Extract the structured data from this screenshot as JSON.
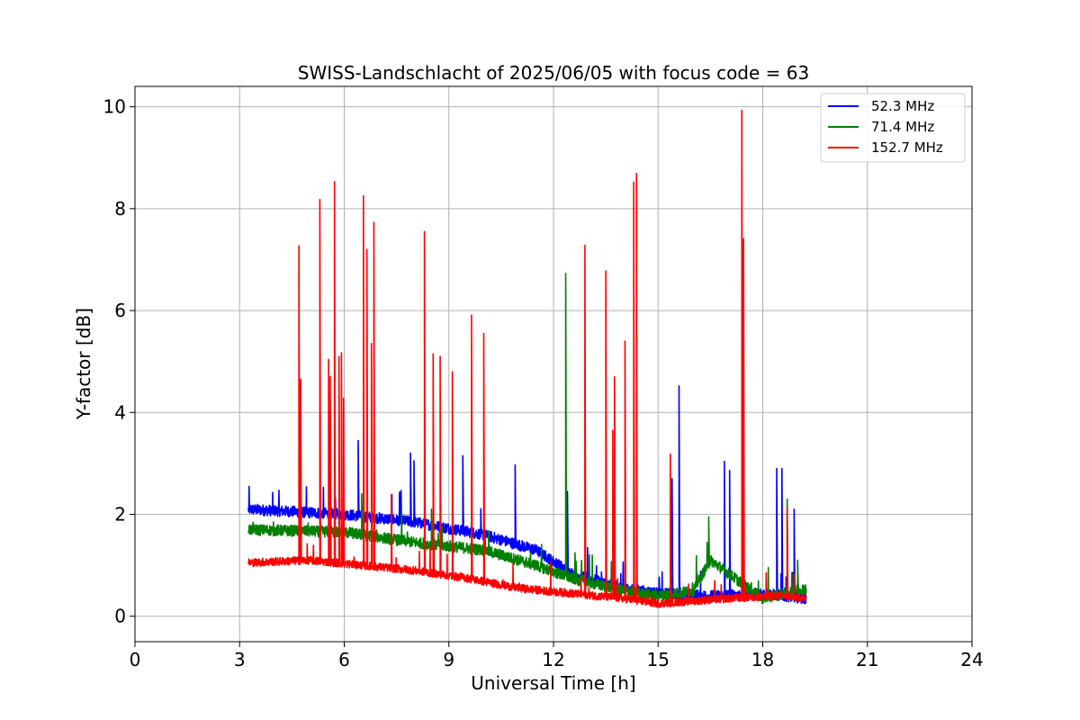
{
  "chart_data": {
    "type": "line",
    "title": "SWISS-Landschlacht of 2025/06/05 with focus code = 63",
    "xlabel": "Universal Time [h]",
    "ylabel": "Y-factor [dB]",
    "xlim": [
      0,
      24
    ],
    "ylim": [
      -0.5,
      10.4
    ],
    "xticks": [
      "0",
      "3",
      "6",
      "9",
      "12",
      "15",
      "18",
      "21",
      "24"
    ],
    "yticks": [
      "0",
      "2",
      "4",
      "6",
      "8",
      "10"
    ],
    "grid": true,
    "legend_position": "top-right",
    "series": [
      {
        "name": " 52.3 MHz",
        "color": "#0000ff",
        "baseline": [
          [
            3.25,
            2.1
          ],
          [
            6.0,
            2.0
          ],
          [
            8.0,
            1.85
          ],
          [
            10.0,
            1.6
          ],
          [
            11.5,
            1.3
          ],
          [
            12.5,
            0.85
          ],
          [
            14.0,
            0.55
          ],
          [
            15.0,
            0.45
          ],
          [
            16.5,
            0.4
          ],
          [
            18.0,
            0.45
          ],
          [
            19.25,
            0.35
          ]
        ],
        "spikes": [
          [
            6.4,
            3.45
          ],
          [
            7.9,
            3.2
          ],
          [
            8.0,
            3.05
          ],
          [
            9.4,
            3.15
          ],
          [
            10.9,
            2.97
          ],
          [
            12.4,
            2.45
          ],
          [
            15.4,
            2.7
          ],
          [
            15.6,
            4.52
          ],
          [
            16.9,
            3.04
          ],
          [
            17.05,
            2.86
          ],
          [
            18.4,
            2.9
          ],
          [
            18.55,
            2.9
          ],
          [
            18.9,
            2.1
          ]
        ]
      },
      {
        "name": " 71.4 MHz",
        "color": "#008000",
        "baseline": [
          [
            3.25,
            1.7
          ],
          [
            6.0,
            1.65
          ],
          [
            8.0,
            1.45
          ],
          [
            10.0,
            1.3
          ],
          [
            11.5,
            1.0
          ],
          [
            12.5,
            0.75
          ],
          [
            14.0,
            0.5
          ],
          [
            15.0,
            0.4
          ],
          [
            16.0,
            0.5
          ],
          [
            16.5,
            1.1
          ],
          [
            17.3,
            0.7
          ],
          [
            18.0,
            0.35
          ],
          [
            19.25,
            0.55
          ]
        ],
        "spikes": [
          [
            5.6,
            2.6
          ],
          [
            6.5,
            2.4
          ],
          [
            8.5,
            2.1
          ],
          [
            12.35,
            6.73
          ],
          [
            16.45,
            1.95
          ],
          [
            18.7,
            2.3
          ],
          [
            19.0,
            1.1
          ]
        ]
      },
      {
        "name": "152.7 MHz",
        "color": "#ff0000",
        "baseline": [
          [
            3.25,
            1.05
          ],
          [
            5.0,
            1.1
          ],
          [
            6.5,
            1.0
          ],
          [
            8.0,
            0.9
          ],
          [
            9.5,
            0.75
          ],
          [
            11.0,
            0.55
          ],
          [
            12.5,
            0.45
          ],
          [
            14.0,
            0.35
          ],
          [
            15.0,
            0.25
          ],
          [
            16.0,
            0.3
          ],
          [
            17.0,
            0.35
          ],
          [
            18.5,
            0.4
          ],
          [
            19.25,
            0.35
          ]
        ],
        "spikes": [
          [
            4.7,
            7.27
          ],
          [
            4.75,
            4.65
          ],
          [
            5.3,
            8.18
          ],
          [
            5.55,
            5.04
          ],
          [
            5.6,
            4.7
          ],
          [
            5.72,
            8.53
          ],
          [
            5.85,
            5.1
          ],
          [
            5.92,
            5.17
          ],
          [
            5.98,
            4.28
          ],
          [
            6.55,
            8.25
          ],
          [
            6.65,
            7.2
          ],
          [
            6.78,
            5.35
          ],
          [
            6.85,
            7.73
          ],
          [
            7.35,
            2.38
          ],
          [
            8.3,
            7.55
          ],
          [
            8.55,
            5.15
          ],
          [
            8.75,
            5.1
          ],
          [
            9.1,
            4.8
          ],
          [
            9.65,
            5.91
          ],
          [
            10.0,
            5.55
          ],
          [
            12.9,
            7.28
          ],
          [
            13.5,
            6.78
          ],
          [
            13.7,
            3.65
          ],
          [
            13.75,
            4.7
          ],
          [
            14.05,
            5.4
          ],
          [
            14.3,
            8.52
          ],
          [
            14.38,
            8.69
          ],
          [
            15.35,
            3.18
          ],
          [
            17.4,
            9.93
          ],
          [
            17.45,
            7.41
          ],
          [
            18.7,
            2.15
          ]
        ]
      }
    ]
  }
}
